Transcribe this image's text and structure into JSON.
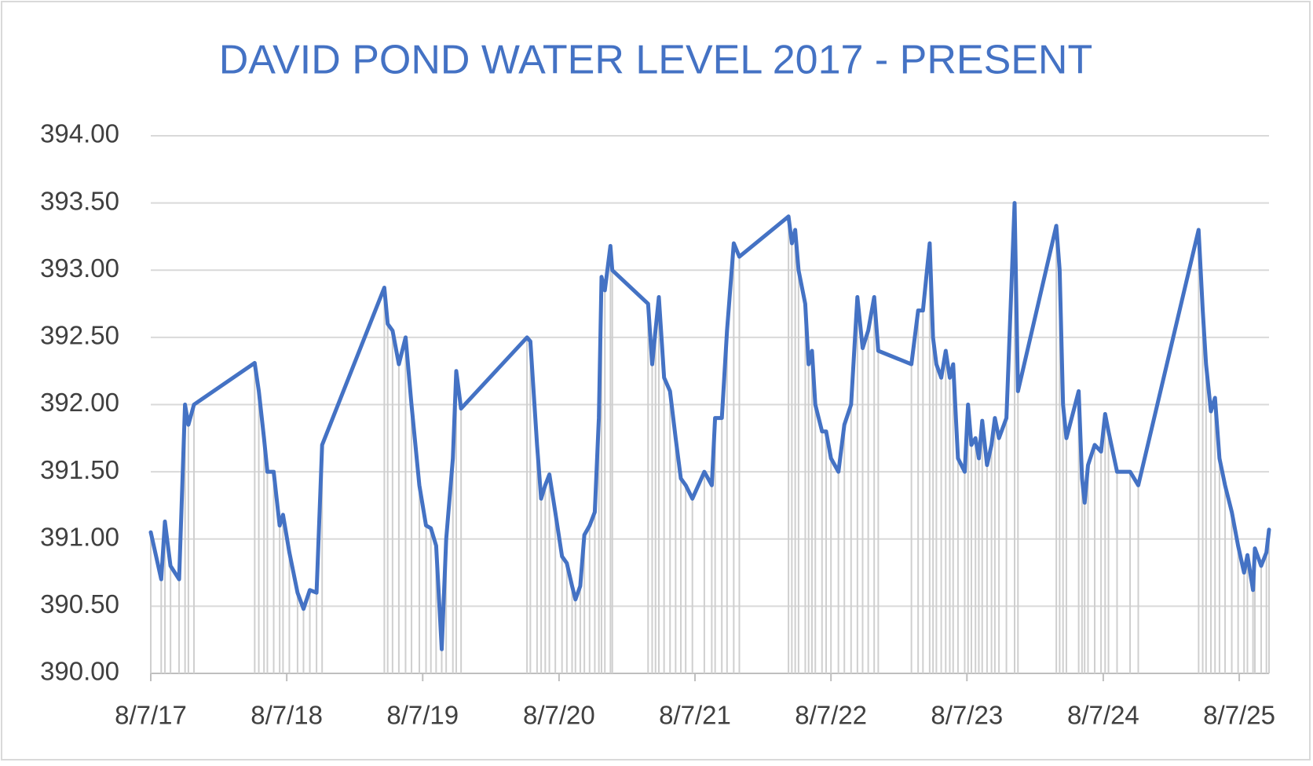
{
  "chart_data": {
    "type": "line",
    "title": "DAVID POND WATER LEVEL 2017 - PRESENT",
    "ylim": [
      390,
      394
    ],
    "yticks": [
      {
        "value": 390,
        "label": "390.00"
      },
      {
        "value": 390.5,
        "label": "390.50"
      },
      {
        "value": 391,
        "label": "391.00"
      },
      {
        "value": 391.5,
        "label": "391.50"
      },
      {
        "value": 392,
        "label": "392.00"
      },
      {
        "value": 392.5,
        "label": "392.50"
      },
      {
        "value": 393,
        "label": "393.00"
      },
      {
        "value": 393.5,
        "label": "393.50"
      },
      {
        "value": 394,
        "label": "394.00"
      }
    ],
    "xlim": [
      "8/7/17",
      "10/26/25"
    ],
    "xticks": [
      "8/7/17",
      "8/7/18",
      "8/7/19",
      "8/7/20",
      "8/7/21",
      "8/7/22",
      "8/7/23",
      "8/7/24",
      "8/7/25"
    ],
    "grid": true,
    "drop_lines": true,
    "x": [
      "8/7/17",
      "9/4/17",
      "9/14/17",
      "9/29/17",
      "10/22/17",
      "11/7/17",
      "11/16/17",
      "12/1/17",
      "5/13/18",
      "5/24/18",
      "6/7/18",
      "6/16/18",
      "7/3/18",
      "7/19/18",
      "7/28/18",
      "8/14/18",
      "9/5/18",
      "9/21/18",
      "10/8/18",
      "10/26/18",
      "11/10/18",
      "4/26/19",
      "5/5/19",
      "5/18/19",
      "6/4/19",
      "6/22/19",
      "7/8/19",
      "7/29/19",
      "8/16/19",
      "8/29/19",
      "9/12/19",
      "9/27/19",
      "10/9/19",
      "10/27/19",
      "11/5/19",
      "11/18/19",
      "5/13/20",
      "5/22/20",
      "6/9/20",
      "6/20/20",
      "7/1/20",
      "7/12/20",
      "7/28/20",
      "8/15/20",
      "8/28/20",
      "9/11/20",
      "9/20/20",
      "10/3/20",
      "10/14/20",
      "10/28/20",
      "11/11/20",
      "11/22/20",
      "11/29/20",
      "12/8/20",
      "12/23/20",
      "12/28/20",
      "4/3/21",
      "4/14/21",
      "4/23/21",
      "5/2/21",
      "5/16/21",
      "6/1/21",
      "6/16/21",
      "6/30/21",
      "7/13/21",
      "7/31/21",
      "9/1/21",
      "9/21/21",
      "9/30/21",
      "10/18/21",
      "11/1/21",
      "11/19/21",
      "12/4/21",
      "4/15/22",
      "4/24/22",
      "5/3/22",
      "5/12/22",
      "5/30/22",
      "6/8/22",
      "6/17/22",
      "6/26/22",
      "7/14/22",
      "7/25/22",
      "8/7/22",
      "8/27/22",
      "9/12/22",
      "9/30/22",
      "10/17/22",
      "10/31/22",
      "11/15/22",
      "12/1/22",
      "12/12/22",
      "3/11/23",
      "3/29/23",
      "4/11/23",
      "4/29/23",
      "5/8/23",
      "5/17/23",
      "5/30/23",
      "6/11/23",
      "6/22/23",
      "7/1/23",
      "7/14/23",
      "8/1/23",
      "8/10/23",
      "8/19/23",
      "8/30/23",
      "9/8/23",
      "9/17/23",
      "9/30/23",
      "10/12/23",
      "10/21/23",
      "11/1/23",
      "11/21/23",
      "12/13/23",
      "12/22/23",
      "4/3/24",
      "4/12/24",
      "4/21/24",
      "4/30/24",
      "6/2/24",
      "6/11/24",
      "6/18/24",
      "6/27/24",
      "7/15/24",
      "8/1/24",
      "8/12/24",
      "8/21/24",
      "9/13/24",
      "10/18/24",
      "11/9/24",
      "4/20/25",
      "5/1/25",
      "5/10/25",
      "5/23/25",
      "6/3/25",
      "6/15/25",
      "6/30/25",
      "7/18/25",
      "8/4/25",
      "8/20/25",
      "8/29/25",
      "9/13/25",
      "9/18/25",
      "10/5/25",
      "10/19/25",
      "10/26/25"
    ],
    "series": [
      {
        "name": "Water level",
        "color": "#4472c4",
        "values": [
          391.05,
          390.7,
          391.13,
          390.8,
          390.7,
          392.0,
          391.85,
          392.0,
          392.31,
          392.1,
          391.75,
          391.5,
          391.5,
          391.1,
          391.18,
          390.9,
          390.6,
          390.48,
          390.62,
          390.6,
          391.7,
          392.87,
          392.6,
          392.55,
          392.3,
          392.5,
          392.0,
          391.4,
          391.1,
          391.08,
          390.95,
          390.18,
          391.0,
          391.6,
          392.25,
          391.97,
          392.5,
          392.47,
          391.7,
          391.3,
          391.4,
          391.48,
          391.2,
          390.87,
          390.82,
          390.65,
          390.55,
          390.65,
          391.03,
          391.1,
          391.2,
          391.9,
          392.95,
          392.85,
          393.18,
          393.0,
          392.75,
          392.3,
          392.55,
          392.8,
          392.2,
          392.1,
          391.75,
          391.45,
          391.4,
          391.3,
          391.5,
          391.4,
          391.9,
          391.9,
          392.55,
          393.2,
          393.1,
          393.4,
          393.2,
          393.3,
          393.0,
          392.75,
          392.3,
          392.4,
          392.0,
          391.8,
          391.8,
          391.6,
          391.5,
          391.85,
          392.0,
          392.8,
          392.42,
          392.55,
          392.8,
          392.4,
          392.3,
          392.7,
          392.7,
          393.2,
          392.5,
          392.3,
          392.2,
          392.4,
          392.2,
          392.3,
          391.6,
          391.5,
          392.0,
          391.7,
          391.75,
          391.6,
          391.88,
          391.55,
          391.7,
          391.9,
          391.75,
          391.9,
          393.5,
          392.1,
          393.33,
          393.0,
          392.0,
          391.75,
          392.1,
          391.45,
          391.27,
          391.55,
          391.7,
          391.65,
          391.93,
          391.8,
          391.5,
          391.5,
          391.4,
          393.3,
          392.7,
          392.3,
          391.95,
          392.05,
          391.6,
          391.4,
          391.2,
          390.95,
          390.75,
          390.88,
          390.62,
          390.93,
          390.8,
          390.9,
          391.07
        ]
      }
    ]
  }
}
